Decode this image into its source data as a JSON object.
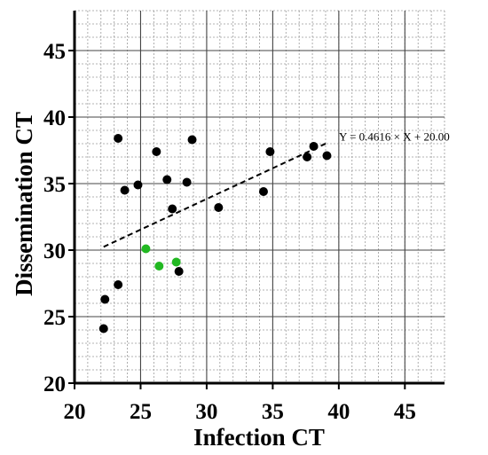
{
  "chart_data": {
    "type": "scatter",
    "xlabel": "Infection CT",
    "ylabel": "Dissemination CT",
    "xlim": [
      20,
      48
    ],
    "ylim": [
      20,
      48
    ],
    "xticks": [
      20,
      25,
      30,
      35,
      40,
      45
    ],
    "yticks": [
      20,
      25,
      30,
      35,
      40,
      45
    ],
    "grid": true,
    "minor_grid": true,
    "colors": {
      "black_points": "#000000",
      "green_points": "#22b822",
      "axes": "#000000",
      "grid_major": "#444444",
      "grid_minor": "#9a9a9a"
    },
    "series": [
      {
        "color": "#000000",
        "points": [
          {
            "x": 22.2,
            "y": 24.1
          },
          {
            "x": 22.3,
            "y": 26.3
          },
          {
            "x": 23.3,
            "y": 27.4
          },
          {
            "x": 23.3,
            "y": 38.4
          },
          {
            "x": 23.8,
            "y": 34.5
          },
          {
            "x": 24.8,
            "y": 34.9
          },
          {
            "x": 26.2,
            "y": 37.4
          },
          {
            "x": 27.0,
            "y": 35.3
          },
          {
            "x": 27.4,
            "y": 33.1
          },
          {
            "x": 27.9,
            "y": 28.4
          },
          {
            "x": 28.5,
            "y": 35.1
          },
          {
            "x": 28.9,
            "y": 38.3
          },
          {
            "x": 30.9,
            "y": 33.2
          },
          {
            "x": 34.3,
            "y": 34.4
          },
          {
            "x": 34.8,
            "y": 37.4
          },
          {
            "x": 37.6,
            "y": 37.0
          },
          {
            "x": 38.1,
            "y": 37.8
          },
          {
            "x": 39.1,
            "y": 37.1
          }
        ]
      },
      {
        "color": "#22b822",
        "points": [
          {
            "x": 25.4,
            "y": 30.1
          },
          {
            "x": 26.4,
            "y": 28.8
          },
          {
            "x": 27.7,
            "y": 29.1
          }
        ]
      }
    ],
    "trendline": {
      "slope": 0.4616,
      "intercept": 20.0,
      "x_range": [
        22.2,
        39.2
      ],
      "style": "dashed",
      "label": "Y = 0.4616 × X + 20.00"
    }
  }
}
